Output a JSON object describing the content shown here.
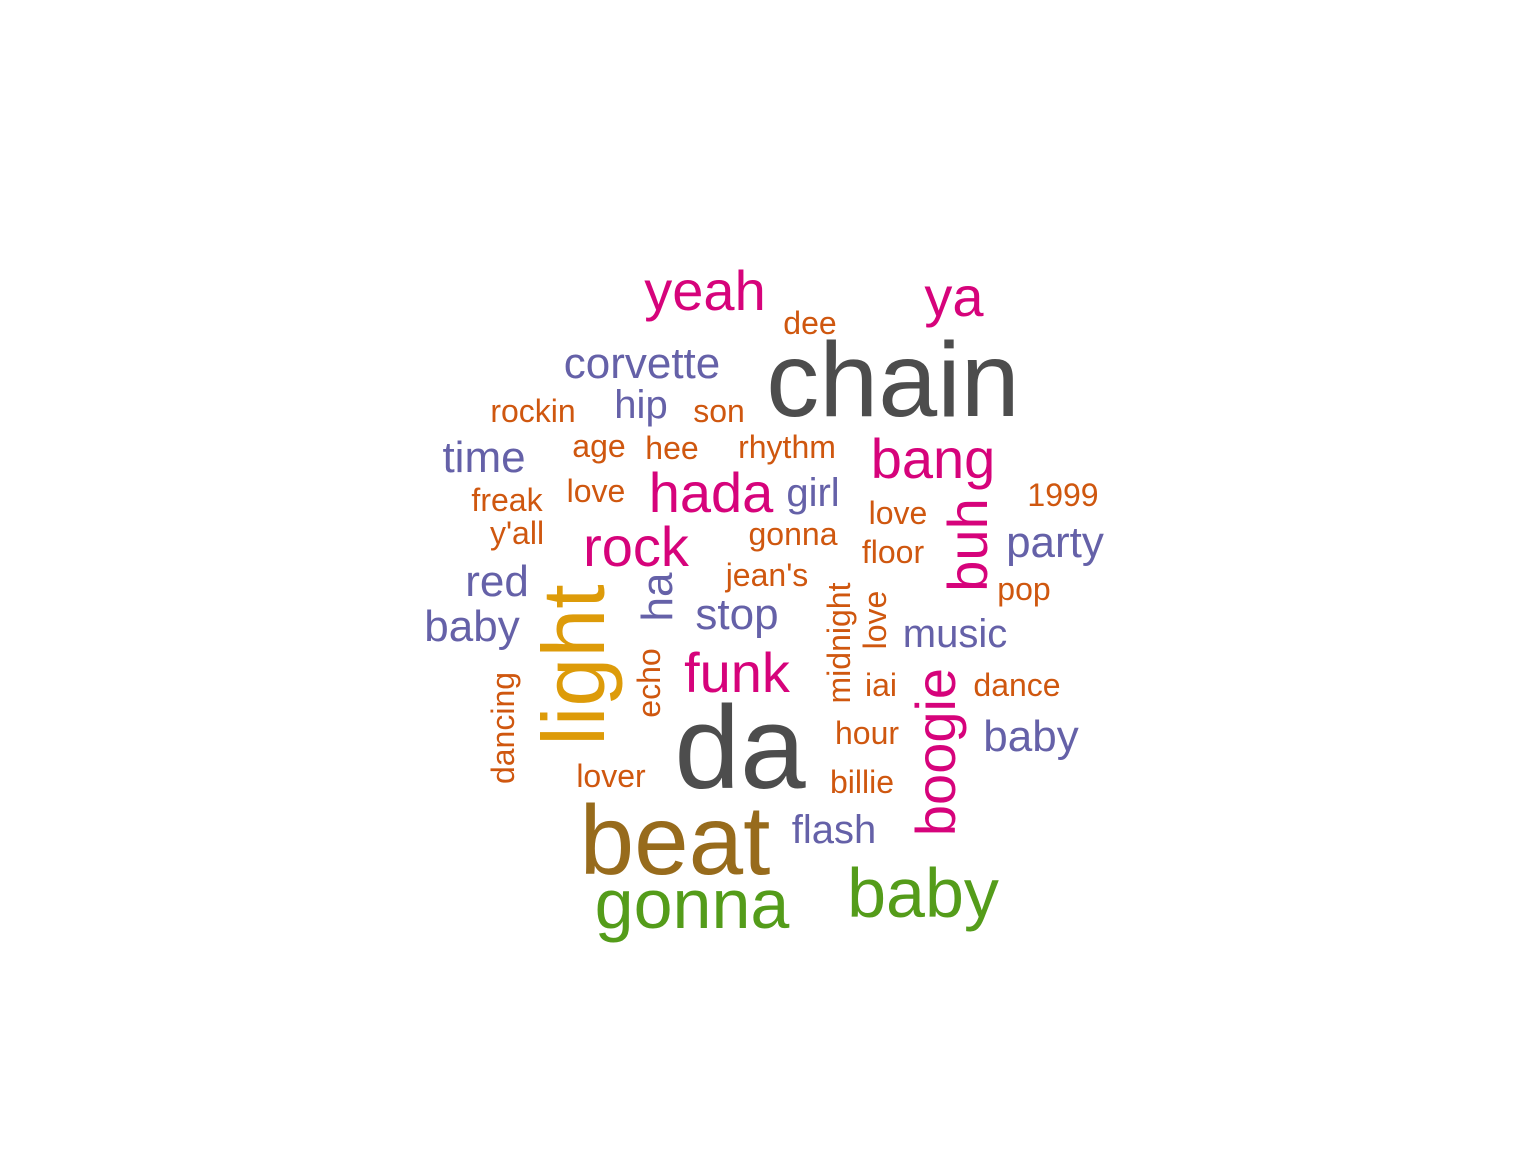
{
  "colors": {
    "gray": "#4d4d4d",
    "brown": "#976b1c",
    "green": "#549c1a",
    "magenta": "#d6037b",
    "purple": "#6561a8",
    "orange": "#cf570f",
    "gold": "#dd9b09"
  },
  "words": [
    {
      "text": "chain",
      "color": "gray",
      "frequency_rank": 1
    },
    {
      "text": "da",
      "color": "gray",
      "frequency_rank": 1
    },
    {
      "text": "beat",
      "color": "brown",
      "frequency_rank": 2
    },
    {
      "text": "light",
      "color": "gold",
      "frequency_rank": 3
    },
    {
      "text": "gonna",
      "color": "green",
      "frequency_rank": 4
    },
    {
      "text": "baby",
      "color": "green",
      "frequency_rank": 4
    },
    {
      "text": "yeah",
      "color": "magenta",
      "frequency_rank": 5
    },
    {
      "text": "ya",
      "color": "magenta",
      "frequency_rank": 5
    },
    {
      "text": "funk",
      "color": "magenta",
      "frequency_rank": 5
    },
    {
      "text": "hada",
      "color": "magenta",
      "frequency_rank": 5
    },
    {
      "text": "bang",
      "color": "magenta",
      "frequency_rank": 5
    },
    {
      "text": "rock",
      "color": "magenta",
      "frequency_rank": 5
    },
    {
      "text": "buh",
      "color": "magenta",
      "frequency_rank": 5
    },
    {
      "text": "boogie",
      "color": "magenta",
      "frequency_rank": 5
    },
    {
      "text": "ha",
      "color": "purple",
      "frequency_rank": 6
    },
    {
      "text": "corvette",
      "color": "purple",
      "frequency_rank": 6
    },
    {
      "text": "time",
      "color": "purple",
      "frequency_rank": 6
    },
    {
      "text": "red",
      "color": "purple",
      "frequency_rank": 6
    },
    {
      "text": "baby",
      "color": "purple",
      "frequency_rank": 6
    },
    {
      "text": "stop",
      "color": "purple",
      "frequency_rank": 6
    },
    {
      "text": "party",
      "color": "purple",
      "frequency_rank": 6
    },
    {
      "text": "baby",
      "color": "purple",
      "frequency_rank": 6
    },
    {
      "text": "hip",
      "color": "purple",
      "frequency_rank": 7
    },
    {
      "text": "girl",
      "color": "purple",
      "frequency_rank": 7
    },
    {
      "text": "music",
      "color": "purple",
      "frequency_rank": 7
    },
    {
      "text": "flash",
      "color": "purple",
      "frequency_rank": 7
    },
    {
      "text": "dee",
      "color": "orange",
      "frequency_rank": 8
    },
    {
      "text": "rockin",
      "color": "orange",
      "frequency_rank": 8
    },
    {
      "text": "son",
      "color": "orange",
      "frequency_rank": 8
    },
    {
      "text": "age",
      "color": "orange",
      "frequency_rank": 8
    },
    {
      "text": "hee",
      "color": "orange",
      "frequency_rank": 8
    },
    {
      "text": "rhythm",
      "color": "orange",
      "frequency_rank": 8
    },
    {
      "text": "freak",
      "color": "orange",
      "frequency_rank": 8
    },
    {
      "text": "love",
      "color": "orange",
      "frequency_rank": 8
    },
    {
      "text": "1999",
      "color": "orange",
      "frequency_rank": 8
    },
    {
      "text": "love",
      "color": "orange",
      "frequency_rank": 8
    },
    {
      "text": "y'all",
      "color": "orange",
      "frequency_rank": 8
    },
    {
      "text": "gonna",
      "color": "orange",
      "frequency_rank": 8
    },
    {
      "text": "floor",
      "color": "orange",
      "frequency_rank": 8
    },
    {
      "text": "jean's",
      "color": "orange",
      "frequency_rank": 8
    },
    {
      "text": "pop",
      "color": "orange",
      "frequency_rank": 8
    },
    {
      "text": "midnight",
      "color": "orange",
      "frequency_rank": 8
    },
    {
      "text": "love",
      "color": "orange",
      "frequency_rank": 8
    },
    {
      "text": "echo",
      "color": "orange",
      "frequency_rank": 8
    },
    {
      "text": "iai",
      "color": "orange",
      "frequency_rank": 8
    },
    {
      "text": "dance",
      "color": "orange",
      "frequency_rank": 8
    },
    {
      "text": "dancing",
      "color": "orange",
      "frequency_rank": 8
    },
    {
      "text": "hour",
      "color": "orange",
      "frequency_rank": 8
    },
    {
      "text": "lover",
      "color": "orange",
      "frequency_rank": 8
    },
    {
      "text": "billie",
      "color": "orange",
      "frequency_rank": 8
    }
  ]
}
